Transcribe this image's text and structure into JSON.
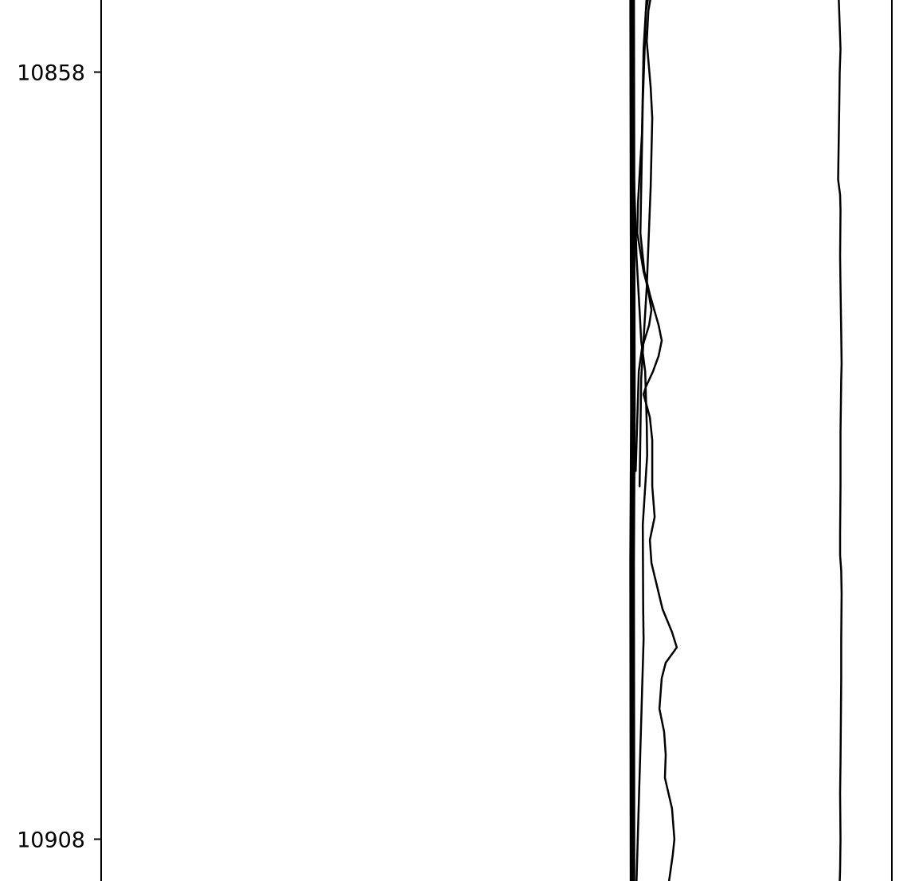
{
  "chart_data": {
    "type": "line",
    "title": "",
    "xlabel": "",
    "ylabel": "",
    "y_axis": {
      "inverted": true,
      "ticks": [
        10858,
        10908
      ]
    },
    "ylim": [
      10852.0,
      10910.8
    ],
    "xlim": [
      0,
      1
    ],
    "grid": false,
    "legend": "none",
    "line_color": "#000000",
    "series": [
      {
        "style": "thick",
        "points": [
          [
            0.6715,
            10852.0
          ],
          [
            0.6725,
            10880.0
          ],
          [
            0.6715,
            10890.0
          ],
          [
            0.672,
            10910.8
          ]
        ]
      },
      {
        "style": "normal",
        "points": [
          [
            0.6715,
            10852.0
          ],
          [
            0.673,
            10858.0
          ],
          [
            0.674,
            10865.0
          ],
          [
            0.677,
            10870.0
          ],
          [
            0.682,
            10874.5
          ],
          [
            0.683,
            10875.5
          ],
          [
            0.688,
            10877.5
          ],
          [
            0.69,
            10881.0
          ],
          [
            0.6905,
            10883.0
          ],
          [
            0.685,
            10887.5
          ],
          [
            0.6855,
            10893.0
          ],
          [
            0.686,
            10895.0
          ],
          [
            0.677,
            10910.8
          ]
        ]
      },
      {
        "style": "normal",
        "points": [
          [
            0.696,
            10852.0
          ],
          [
            0.69,
            10853.0
          ],
          [
            0.686,
            10856.5
          ],
          [
            0.684,
            10862.0
          ],
          [
            0.679,
            10866.5
          ],
          [
            0.678,
            10868.5
          ],
          [
            0.686,
            10871.0
          ],
          [
            0.691,
            10872.0
          ],
          [
            0.696,
            10873.5
          ],
          [
            0.693,
            10874.5
          ],
          [
            0.684,
            10876.0
          ],
          [
            0.68,
            10877.5
          ],
          [
            0.676,
            10884.0
          ]
        ]
      },
      {
        "style": "normal",
        "points": [
          [
            0.699,
            10852.0
          ],
          [
            0.692,
            10854.0
          ],
          [
            0.69,
            10856.0
          ],
          [
            0.695,
            10859.0
          ],
          [
            0.697,
            10861.0
          ],
          [
            0.695,
            10865.5
          ],
          [
            0.69,
            10872.0
          ],
          [
            0.683,
            10878.0
          ],
          [
            0.681,
            10885.0
          ]
        ]
      },
      {
        "style": "normal",
        "points": [
          [
            0.696,
            10852.0
          ],
          [
            0.689,
            10854.0
          ],
          [
            0.685,
            10860.0
          ],
          [
            0.682,
            10868.5
          ],
          [
            0.687,
            10871.0
          ],
          [
            0.694,
            10872.5
          ],
          [
            0.705,
            10874.5
          ],
          [
            0.709,
            10875.5
          ],
          [
            0.705,
            10876.5
          ],
          [
            0.698,
            10877.5
          ],
          [
            0.689,
            10878.5
          ],
          [
            0.686,
            10879.0
          ],
          [
            0.694,
            10880.5
          ],
          [
            0.697,
            10882.0
          ],
          [
            0.697,
            10885.0
          ],
          [
            0.7,
            10887.0
          ],
          [
            0.694,
            10888.5
          ],
          [
            0.696,
            10890.0
          ],
          [
            0.71,
            10893.0
          ],
          [
            0.722,
            10894.5
          ],
          [
            0.728,
            10895.5
          ],
          [
            0.714,
            10896.5
          ],
          [
            0.709,
            10897.5
          ],
          [
            0.706,
            10899.5
          ],
          [
            0.712,
            10901.0
          ],
          [
            0.714,
            10902.5
          ],
          [
            0.713,
            10904.0
          ],
          [
            0.722,
            10906.0
          ],
          [
            0.725,
            10908.0
          ],
          [
            0.723,
            10909.0
          ],
          [
            0.718,
            10910.8
          ]
        ]
      },
      {
        "style": "normal",
        "points": [
          [
            0.932,
            10852.0
          ],
          [
            0.935,
            10856.5
          ],
          [
            0.934,
            10858.0
          ],
          [
            0.9335,
            10860.0
          ],
          [
            0.932,
            10865.0
          ],
          [
            0.9345,
            10866.0
          ],
          [
            0.935,
            10867.0
          ],
          [
            0.9345,
            10870.0
          ],
          [
            0.935,
            10872.0
          ],
          [
            0.936,
            10875.0
          ],
          [
            0.9365,
            10877.0
          ],
          [
            0.936,
            10878.0
          ],
          [
            0.935,
            10881.5
          ],
          [
            0.935,
            10885.0
          ],
          [
            0.9345,
            10888.0
          ],
          [
            0.9345,
            10889.5
          ],
          [
            0.936,
            10890.5
          ],
          [
            0.9365,
            10892.0
          ],
          [
            0.936,
            10895.0
          ],
          [
            0.936,
            10897.5
          ],
          [
            0.9355,
            10900.0
          ],
          [
            0.935,
            10903.0
          ],
          [
            0.9345,
            10905.0
          ],
          [
            0.935,
            10908.0
          ],
          [
            0.9345,
            10910.0
          ],
          [
            0.934,
            10910.8
          ]
        ]
      }
    ]
  }
}
